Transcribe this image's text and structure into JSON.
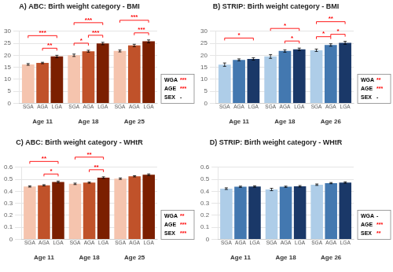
{
  "chart_data": [
    {
      "type": "bar",
      "title": "A) ABC: Birth weight category - BMI",
      "categories": [
        "Age 11",
        "Age 18",
        "Age 25"
      ],
      "series": [
        {
          "name": "SGA",
          "color": "#F5C4AE",
          "values": [
            16.2,
            20.0,
            21.8
          ],
          "errors": [
            0.35,
            0.5,
            0.4
          ]
        },
        {
          "name": "AGA",
          "color": "#C0522A",
          "values": [
            16.8,
            21.7,
            24.1
          ],
          "errors": [
            0.3,
            0.4,
            0.5
          ]
        },
        {
          "name": "LGA",
          "color": "#7B1F00",
          "values": [
            19.5,
            24.9,
            25.8
          ],
          "errors": [
            0.5,
            0.5,
            0.6
          ]
        }
      ],
      "ylim": [
        0,
        30
      ],
      "yticks": [
        0,
        5,
        10,
        15,
        20,
        25,
        30
      ],
      "grid": true,
      "annotations": [
        {
          "category": "Age 11",
          "from": "AGA",
          "to": "LGA",
          "text": "**",
          "color": "red"
        },
        {
          "category": "Age 11",
          "from": "SGA",
          "to": "LGA",
          "text": "***",
          "color": "red"
        },
        {
          "category": "Age 18",
          "from": "SGA",
          "to": "AGA",
          "text": "*",
          "color": "red"
        },
        {
          "category": "Age 18",
          "from": "AGA",
          "to": "LGA",
          "text": "***",
          "color": "red"
        },
        {
          "category": "Age 18",
          "from": "SGA",
          "to": "LGA",
          "text": "***",
          "color": "red"
        },
        {
          "category": "Age 25",
          "from": "AGA",
          "to": "LGA",
          "text": "***",
          "color": "red"
        },
        {
          "category": "Age 25",
          "from": "SGA",
          "to": "LGA",
          "text": "***",
          "color": "red"
        }
      ],
      "inset": [
        {
          "label": "WGA",
          "text": "***",
          "color": "red"
        },
        {
          "label": "AGE",
          "text": "***",
          "color": "red"
        },
        {
          "label": "SEX",
          "text": "-",
          "color": "black"
        }
      ]
    },
    {
      "type": "bar",
      "title": "B) STRIP: Birth weight category - BMI",
      "categories": [
        "Age 11",
        "Age 18",
        "Age 26"
      ],
      "series": [
        {
          "name": "SGA",
          "color": "#AECDE8",
          "values": [
            16.1,
            19.5,
            22.1
          ],
          "errors": [
            0.7,
            0.8,
            0.5
          ]
        },
        {
          "name": "AGA",
          "color": "#4378B0",
          "values": [
            18.1,
            21.8,
            24.3
          ],
          "errors": [
            0.4,
            0.5,
            0.5
          ]
        },
        {
          "name": "LGA",
          "color": "#1A3868",
          "values": [
            18.5,
            22.5,
            25.2
          ],
          "errors": [
            0.5,
            0.5,
            0.6
          ]
        }
      ],
      "ylim": [
        0,
        30
      ],
      "yticks": [
        0,
        5,
        10,
        15,
        20,
        25,
        30
      ],
      "grid": true,
      "annotations": [
        {
          "category": "Age 11",
          "from": "SGA",
          "to": "LGA",
          "text": "*",
          "color": "red"
        },
        {
          "category": "Age 18",
          "from": "AGA",
          "to": "LGA",
          "text": "*",
          "color": "red"
        },
        {
          "category": "Age 18",
          "from": "SGA",
          "to": "LGA",
          "text": "*",
          "color": "red"
        },
        {
          "category": "Age 26",
          "from": "SGA",
          "to": "AGA",
          "text": "*",
          "color": "red"
        },
        {
          "category": "Age 26",
          "from": "AGA",
          "to": "LGA",
          "text": "*",
          "color": "red"
        },
        {
          "category": "Age 26",
          "from": "SGA",
          "to": "LGA",
          "text": "**",
          "color": "red"
        }
      ],
      "inset": [
        {
          "label": "WGA",
          "text": "**",
          "color": "red"
        },
        {
          "label": "AGE",
          "text": "***",
          "color": "red"
        },
        {
          "label": "SEX",
          "text": "-",
          "color": "black"
        }
      ]
    },
    {
      "type": "bar",
      "title": "C) ABC: Birth weight category - WHtR",
      "categories": [
        "Age 11",
        "Age 18",
        "Age 25"
      ],
      "series": [
        {
          "name": "SGA",
          "color": "#F5C4AE",
          "values": [
            0.44,
            0.462,
            0.505
          ],
          "errors": [
            0.005,
            0.006,
            0.006
          ]
        },
        {
          "name": "AGA",
          "color": "#C0522A",
          "values": [
            0.45,
            0.472,
            0.525
          ],
          "errors": [
            0.005,
            0.005,
            0.005
          ]
        },
        {
          "name": "LGA",
          "color": "#7B1F00",
          "values": [
            0.478,
            0.514,
            0.538
          ],
          "errors": [
            0.007,
            0.007,
            0.007
          ]
        }
      ],
      "ylim": [
        0,
        0.6
      ],
      "yticks": [
        0,
        0.1,
        0.2,
        0.3,
        0.4,
        0.5,
        0.6
      ],
      "grid": true,
      "annotations": [
        {
          "category": "Age 11",
          "from": "AGA",
          "to": "LGA",
          "text": "*",
          "color": "red"
        },
        {
          "category": "Age 11",
          "from": "SGA",
          "to": "LGA",
          "text": "**",
          "color": "red"
        },
        {
          "category": "Age 18",
          "from": "AGA",
          "to": "LGA",
          "text": "**",
          "color": "red"
        },
        {
          "category": "Age 18",
          "from": "SGA",
          "to": "LGA",
          "text": "**",
          "color": "red"
        }
      ],
      "inset": [
        {
          "label": "WGA",
          "text": "**",
          "color": "red"
        },
        {
          "label": "AGE",
          "text": "***",
          "color": "red"
        },
        {
          "label": "SEX",
          "text": "***",
          "color": "red"
        }
      ]
    },
    {
      "type": "bar",
      "title": "D) STRIP: Birth weight category - WHtR",
      "categories": [
        "Age 11",
        "Age 18",
        "Age 26"
      ],
      "series": [
        {
          "name": "SGA",
          "color": "#AECDE8",
          "values": [
            0.422,
            0.415,
            0.455
          ],
          "errors": [
            0.007,
            0.01,
            0.006
          ]
        },
        {
          "name": "AGA",
          "color": "#4378B0",
          "values": [
            0.438,
            0.438,
            0.468
          ],
          "errors": [
            0.005,
            0.005,
            0.005
          ]
        },
        {
          "name": "LGA",
          "color": "#1A3868",
          "values": [
            0.44,
            0.442,
            0.473
          ],
          "errors": [
            0.006,
            0.006,
            0.006
          ]
        }
      ],
      "ylim": [
        0,
        0.6
      ],
      "yticks": [
        0,
        0.1,
        0.2,
        0.3,
        0.4,
        0.5,
        0.6
      ],
      "grid": true,
      "inset": [
        {
          "label": "WGA",
          "text": "-",
          "color": "black"
        },
        {
          "label": "AGE",
          "text": "***",
          "color": "red"
        },
        {
          "label": "SEX",
          "text": "**",
          "color": "red"
        }
      ]
    }
  ]
}
